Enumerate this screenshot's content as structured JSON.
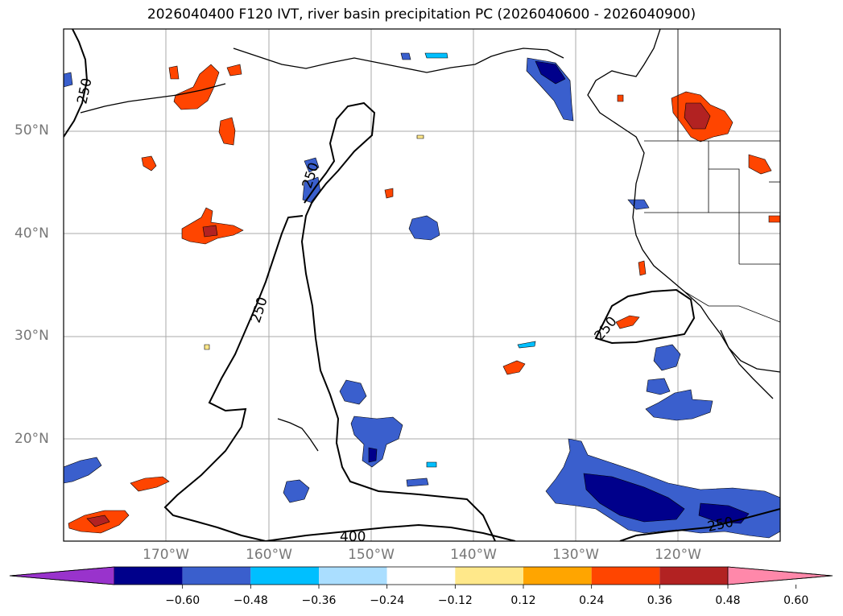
{
  "title": "2026040400 F120 IVT, river basin precipitation PC (2026040600 - 2026040900)",
  "map": {
    "lat_labels": [
      "50°N",
      "40°N",
      "30°N",
      "20°N"
    ],
    "lon_labels": [
      "170°W",
      "160°W",
      "150°W",
      "140°W",
      "130°W",
      "120°W"
    ],
    "ivt_contour_labels": [
      "250",
      "250",
      "250",
      "250",
      "250",
      "400"
    ]
  },
  "colorbar": {
    "ticks": [
      "−0.60",
      "−0.48",
      "−0.36",
      "−0.24",
      "−0.12",
      "0.12",
      "0.24",
      "0.36",
      "0.48",
      "0.60"
    ],
    "colors": [
      "#9933cc",
      "#00008b",
      "#3a5fcd",
      "#00bfff",
      "#aadeff",
      "#ffffff",
      "#ffe88a",
      "#ffa500",
      "#ff4500",
      "#b22222",
      "#ff88aa"
    ]
  }
}
